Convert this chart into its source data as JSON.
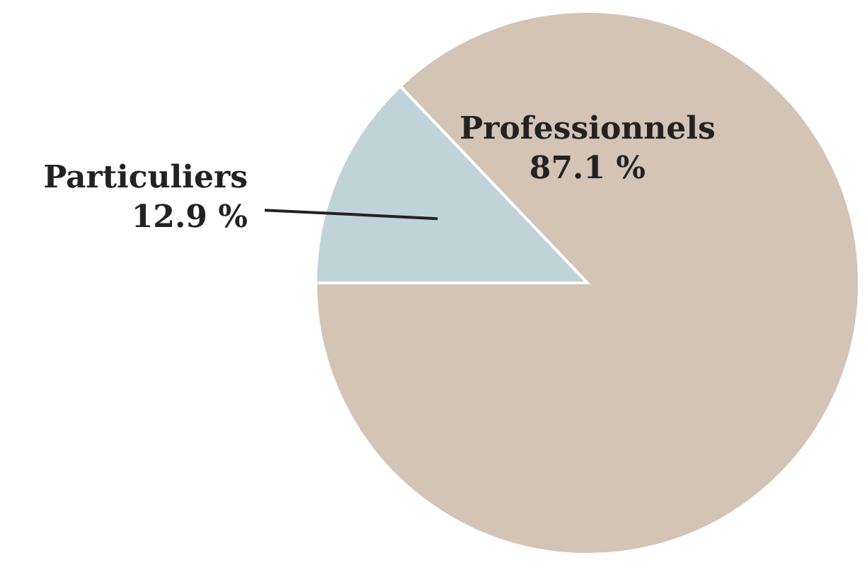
{
  "chart_data": {
    "type": "pie",
    "categories": [
      "Particuliers",
      "Professionnels"
    ],
    "values": [
      12.9,
      87.1
    ],
    "colors": [
      "#bfd3d9",
      "#d4c4b5"
    ],
    "value_labels": [
      "12.9 %",
      "87.1 %"
    ]
  }
}
